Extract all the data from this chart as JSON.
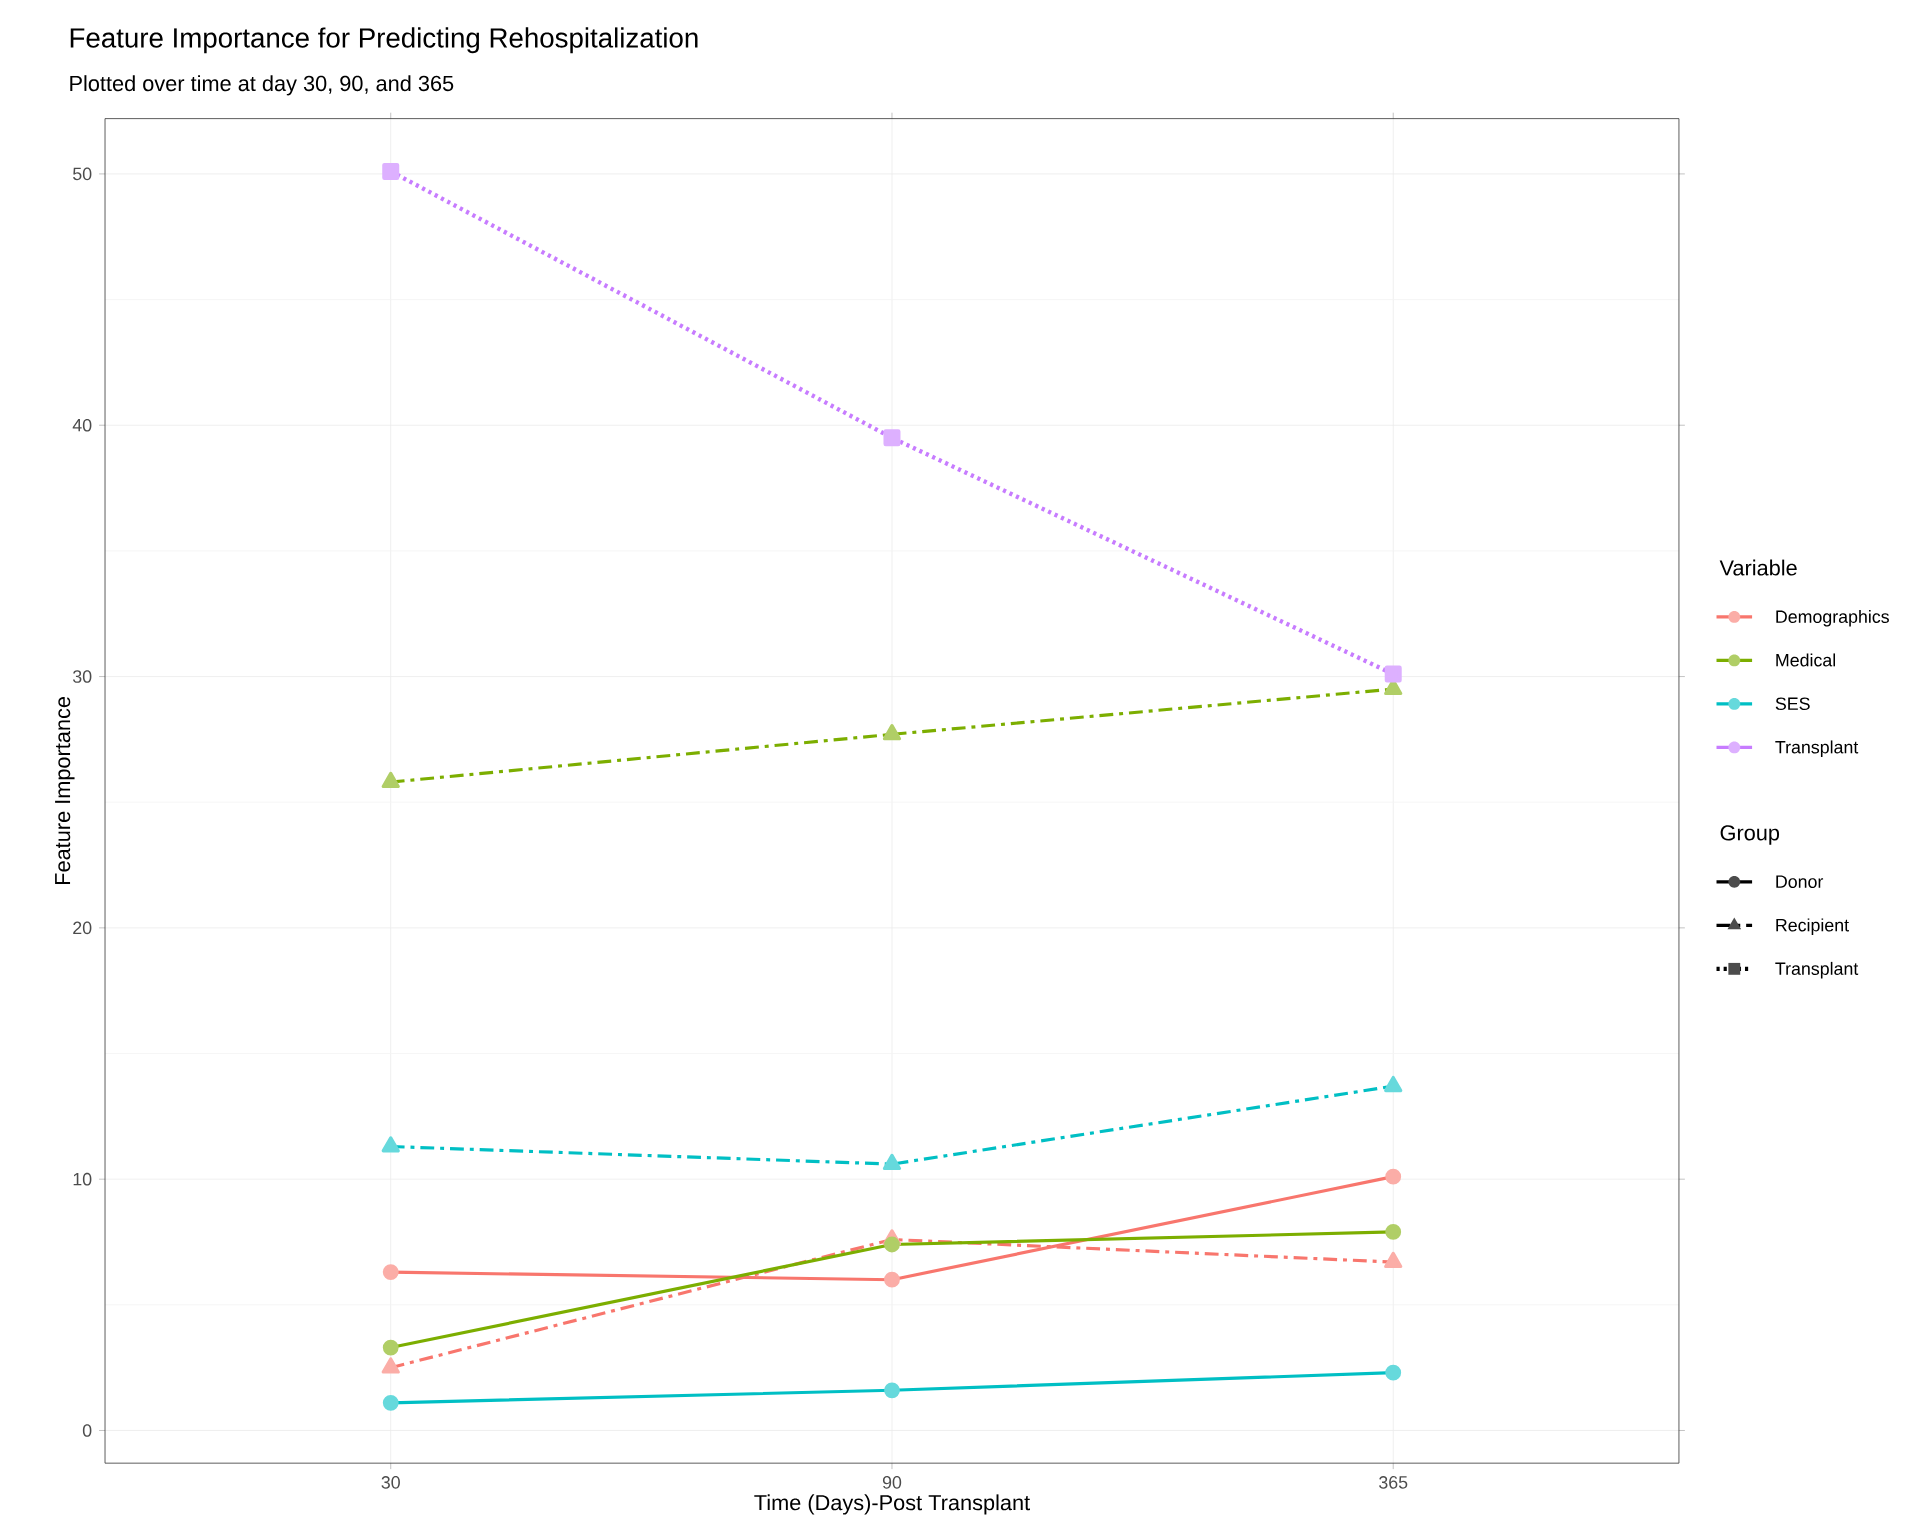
{
  "chart_data": {
    "type": "line",
    "title": "Feature Importance for Predicting Rehospitalization",
    "subtitle": "Plotted over time at day 30, 90, and 365",
    "xlabel": "Time (Days)-Post Transplant",
    "ylabel": "Feature Importance",
    "legend_title": "Variable",
    "categories": [
      "30",
      "90",
      "365"
    ],
    "series": [
      {
        "name": "Demographics",
        "color": "#f8766d",
        "marker": "circle",
        "line_style": "solid",
        "values": [
          6.3,
          6.0,
          10.1
        ]
      },
      {
        "color": "#f8766d",
        "marker": "triangle",
        "line_style": "dashed",
        "values": [
          2.5,
          7.6,
          6.7
        ]
      },
      {
        "name": "Medical",
        "color": "#7cae00",
        "marker": "circle",
        "line_style": "solid",
        "values": [
          3.3,
          7.4,
          7.9
        ]
      },
      {
        "color": "#7cae00",
        "marker": "triangle",
        "line_style": "dashed",
        "values": [
          25.8,
          27.7,
          29.5
        ]
      },
      {
        "name": "SES",
        "color": "#00bfc4",
        "marker": "circle",
        "line_style": "solid",
        "values": [
          1.1,
          1.6,
          2.3
        ]
      },
      {
        "color": "#00bfc4",
        "marker": "triangle",
        "line_style": "dashed",
        "values": [
          11.3,
          10.6,
          13.7
        ]
      },
      {
        "name": "Transplant",
        "color": "#c77cff",
        "marker": "square",
        "line_style": "dotted",
        "values": [
          50.1,
          39.5,
          30.1
        ]
      }
    ],
    "annotations": [
      "Group",
      "Donor",
      "Recipient",
      "Transplant"
    ],
    "ylim": [
      -1.3,
      52.2
    ],
    "yticks": [
      0,
      10,
      20,
      30,
      40,
      50
    ],
    "grid": true,
    "legend": "right"
  }
}
